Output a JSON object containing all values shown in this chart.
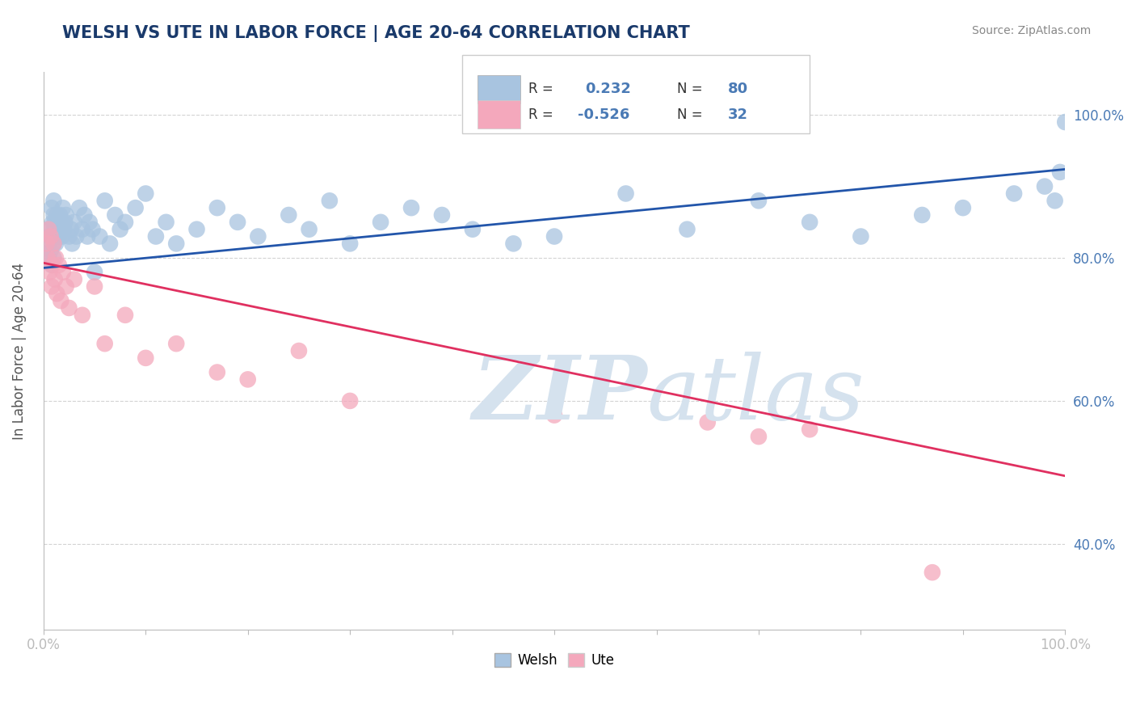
{
  "title": "WELSH VS UTE IN LABOR FORCE | AGE 20-64 CORRELATION CHART",
  "source": "Source: ZipAtlas.com",
  "ylabel": "In Labor Force | Age 20-64",
  "xlim": [
    0,
    1.0
  ],
  "ylim": [
    0.28,
    1.06
  ],
  "y_ticks": [
    0.4,
    0.6,
    0.8,
    1.0
  ],
  "y_tick_labels": [
    "40.0%",
    "60.0%",
    "80.0%",
    "100.0%"
  ],
  "welsh_R": 0.232,
  "welsh_N": 80,
  "ute_R": -0.526,
  "ute_N": 32,
  "welsh_color": "#a8c4e0",
  "ute_color": "#f4a8bc",
  "welsh_line_color": "#2255aa",
  "ute_line_color": "#e03060",
  "legend_welsh_label": "Welsh",
  "legend_ute_label": "Ute",
  "background_color": "#ffffff",
  "grid_color": "#c8c8c8",
  "watermark_color": "#d5e2ee",
  "title_color": "#1a3a6b",
  "source_color": "#888888",
  "welsh_line_intercept": 0.786,
  "welsh_line_slope": 0.138,
  "ute_line_intercept": 0.793,
  "ute_line_slope": -0.298,
  "welsh_x": [
    0.005,
    0.005,
    0.005,
    0.006,
    0.007,
    0.008,
    0.008,
    0.009,
    0.009,
    0.01,
    0.01,
    0.01,
    0.01,
    0.01,
    0.011,
    0.011,
    0.012,
    0.012,
    0.013,
    0.013,
    0.014,
    0.015,
    0.015,
    0.016,
    0.017,
    0.018,
    0.018,
    0.019,
    0.02,
    0.021,
    0.022,
    0.025,
    0.027,
    0.028,
    0.03,
    0.032,
    0.035,
    0.038,
    0.04,
    0.043,
    0.045,
    0.048,
    0.05,
    0.055,
    0.06,
    0.065,
    0.07,
    0.075,
    0.08,
    0.09,
    0.1,
    0.11,
    0.12,
    0.13,
    0.15,
    0.17,
    0.19,
    0.21,
    0.24,
    0.26,
    0.28,
    0.3,
    0.33,
    0.36,
    0.39,
    0.42,
    0.46,
    0.5,
    0.57,
    0.63,
    0.7,
    0.75,
    0.8,
    0.86,
    0.9,
    0.95,
    0.98,
    0.99,
    0.995,
    1.0
  ],
  "welsh_y": [
    0.84,
    0.82,
    0.8,
    0.83,
    0.81,
    0.79,
    0.87,
    0.83,
    0.85,
    0.84,
    0.82,
    0.8,
    0.86,
    0.88,
    0.85,
    0.83,
    0.84,
    0.82,
    0.86,
    0.83,
    0.84,
    0.85,
    0.83,
    0.86,
    0.84,
    0.85,
    0.83,
    0.87,
    0.84,
    0.85,
    0.86,
    0.83,
    0.84,
    0.82,
    0.85,
    0.83,
    0.87,
    0.84,
    0.86,
    0.83,
    0.85,
    0.84,
    0.78,
    0.83,
    0.88,
    0.82,
    0.86,
    0.84,
    0.85,
    0.87,
    0.89,
    0.83,
    0.85,
    0.82,
    0.84,
    0.87,
    0.85,
    0.83,
    0.86,
    0.84,
    0.88,
    0.82,
    0.85,
    0.87,
    0.86,
    0.84,
    0.82,
    0.83,
    0.89,
    0.84,
    0.88,
    0.85,
    0.83,
    0.86,
    0.87,
    0.89,
    0.9,
    0.88,
    0.92,
    0.99
  ],
  "ute_x": [
    0.003,
    0.004,
    0.005,
    0.006,
    0.007,
    0.008,
    0.009,
    0.01,
    0.011,
    0.012,
    0.013,
    0.015,
    0.017,
    0.019,
    0.022,
    0.025,
    0.03,
    0.038,
    0.05,
    0.06,
    0.08,
    0.1,
    0.13,
    0.17,
    0.2,
    0.25,
    0.3,
    0.5,
    0.65,
    0.7,
    0.75,
    0.87
  ],
  "ute_y": [
    0.82,
    0.8,
    0.84,
    0.78,
    0.83,
    0.76,
    0.79,
    0.82,
    0.77,
    0.8,
    0.75,
    0.79,
    0.74,
    0.78,
    0.76,
    0.73,
    0.77,
    0.72,
    0.76,
    0.68,
    0.72,
    0.66,
    0.68,
    0.64,
    0.63,
    0.67,
    0.6,
    0.58,
    0.57,
    0.55,
    0.56,
    0.36
  ]
}
